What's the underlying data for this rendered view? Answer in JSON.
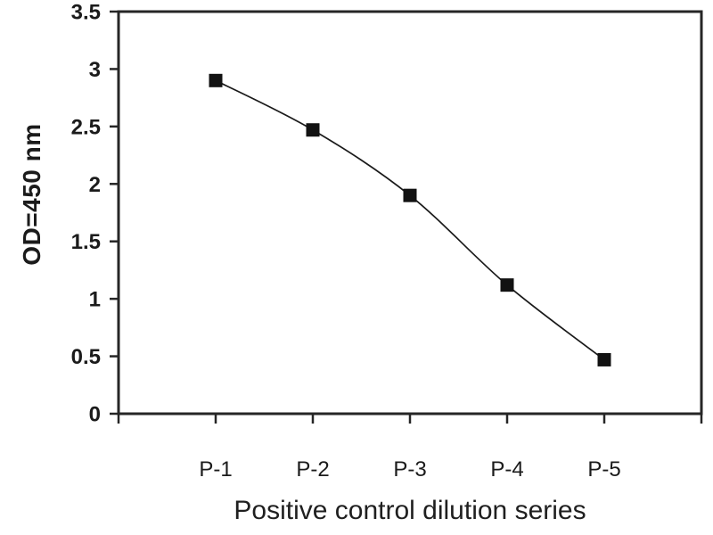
{
  "chart_data": {
    "type": "line",
    "categories": [
      "P-1",
      "P-2",
      "P-3",
      "P-4",
      "P-5"
    ],
    "values": [
      2.9,
      2.47,
      1.9,
      1.12,
      0.47
    ],
    "xlabel": "Positive control dilution series",
    "ylabel": "OD=450 nm",
    "ylim": [
      0,
      3.5
    ],
    "yticks": [
      0,
      0.5,
      1,
      1.5,
      2,
      2.5,
      3,
      3.5
    ],
    "ytick_labels": [
      "0",
      "0.5",
      "1",
      "1.5",
      "2",
      "2.5",
      "3",
      "3.5"
    ],
    "grid": false,
    "legend": "none",
    "marker": "filled-square",
    "colors": {
      "line": "#1a1a1a",
      "marker": "#121212",
      "axis": "#262626",
      "text": "#1b1b1b",
      "background": "#ffffff"
    }
  }
}
